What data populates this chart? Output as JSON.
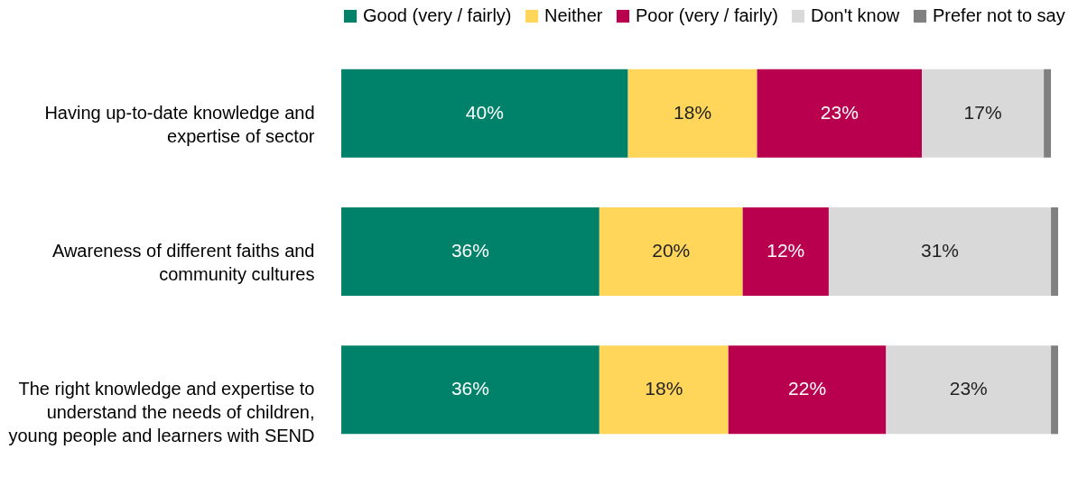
{
  "chart_data": {
    "type": "bar",
    "orientation": "horizontal",
    "stacked": true,
    "legend": "top",
    "grid": false,
    "tick_labels": "y",
    "categories": [
      "Having up-to-date knowledge and expertise of  sector",
      "Awareness of different faiths and community cultures",
      "The right knowledge and expertise to understand the needs of children, young people and learners with SEND"
    ],
    "series": [
      {
        "name": "Good (very / fairly)",
        "color": "#00826a",
        "values": [
          40,
          36,
          36
        ],
        "value_labels": [
          "40%",
          "36%",
          "36%"
        ]
      },
      {
        "name": "Neither",
        "color": "#ffd55a",
        "values": [
          18,
          20,
          18
        ],
        "value_labels": [
          "18%",
          "20%",
          "18%"
        ]
      },
      {
        "name": "Poor (very / fairly)",
        "color": "#b8004f",
        "values": [
          23,
          12,
          22
        ],
        "value_labels": [
          "23%",
          "12%",
          "22%"
        ]
      },
      {
        "name": "Don't know",
        "color": "#d9d9d9",
        "values": [
          17,
          31,
          23
        ],
        "value_labels": [
          "17%",
          "31%",
          "23%"
        ]
      },
      {
        "name": "Prefer not to say",
        "color": "#808080",
        "values": [
          1,
          1,
          1
        ],
        "value_labels": [
          null,
          null,
          null
        ]
      }
    ]
  }
}
